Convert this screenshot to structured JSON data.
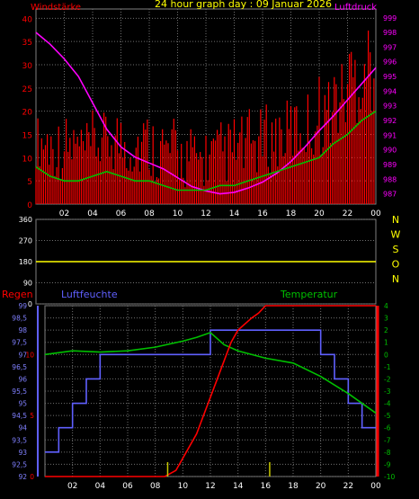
{
  "top": {
    "title": "24 hour graph day : 09 Januar 2026",
    "left_label": "Windstärke",
    "right_label": "Luftdruck",
    "colors": {
      "title": "#ffff00",
      "left": "#ff0000",
      "right": "#ff00ff",
      "wind": "#ff0000",
      "gust": "#00c000",
      "pressure": "#ff00ff",
      "lights": "#c8f0c8"
    }
  },
  "middle": {
    "dir_labels": [
      "N",
      "W",
      "S",
      "O",
      "N"
    ],
    "colors": {
      "direction": "#ffff00",
      "labels": "#ffff00"
    }
  },
  "bottom": {
    "rain_label": "Regen",
    "humidity_label": "Luftfeuchte",
    "temp_label": "Temperatur",
    "colors": {
      "rain": "#ff0000",
      "humidity": "#6060ff",
      "temperature": "#00c000",
      "rain_rate": "#c8c800"
    }
  },
  "chart_data": [
    {
      "type": "line",
      "x_ticks": [
        "02",
        "04",
        "06",
        "08",
        "10",
        "12",
        "14",
        "16",
        "18",
        "20",
        "22",
        "00"
      ],
      "y_ticks_left": [
        "0",
        "5",
        "10",
        "15",
        "20",
        "25",
        "30",
        "35",
        "40"
      ],
      "y_ticks_right": [
        "987",
        "988",
        "989",
        "990",
        "991",
        "992",
        "993",
        "994",
        "995",
        "996",
        "997",
        "998",
        "999"
      ],
      "ylim_left": [
        0,
        42
      ],
      "ylim_right": [
        986.3,
        999.6
      ],
      "series": [
        {
          "axis": "right",
          "x": [
            0,
            1,
            2,
            3,
            4,
            5,
            6,
            7,
            8,
            9,
            10,
            11,
            12,
            13,
            14,
            15,
            16,
            17,
            18,
            19,
            20,
            21,
            22,
            23,
            24
          ],
          "values": [
            998,
            997.2,
            996.2,
            995,
            993.2,
            991.4,
            990.2,
            989.5,
            989.1,
            988.7,
            988.1,
            987.5,
            987.2,
            987,
            987.1,
            987.4,
            987.8,
            988.4,
            989.2,
            990.2,
            991.3,
            992.3,
            993.4,
            994.5,
            995.6
          ]
        },
        {
          "axis": "left",
          "x": [
            0,
            1,
            2,
            3,
            4,
            5,
            6,
            7,
            8,
            9,
            10,
            11,
            12,
            13,
            14,
            15,
            16,
            17,
            18,
            19,
            20,
            21,
            22,
            23,
            24
          ],
          "values": [
            8,
            6,
            5,
            5,
            6,
            7,
            6,
            5,
            5,
            4,
            3,
            3,
            3,
            4,
            4,
            5,
            6,
            7,
            8,
            9,
            10,
            13,
            15,
            18,
            20
          ]
        },
        {
          "axis": "left",
          "x": [
            0,
            1,
            2,
            3,
            4,
            5,
            6,
            7,
            8,
            9,
            10,
            11,
            12,
            13,
            14,
            15,
            16,
            17,
            18,
            19,
            20,
            21,
            22,
            23,
            24
          ],
          "values": [
            15,
            14,
            14,
            13,
            15,
            16,
            15,
            15,
            14,
            13,
            12,
            11,
            12,
            13,
            14,
            15,
            16,
            17,
            18,
            19,
            22,
            25,
            30,
            33,
            28
          ]
        }
      ]
    },
    {
      "type": "line",
      "y_ticks": [
        "360",
        "270",
        "180",
        "90",
        "0"
      ],
      "ylim": [
        0,
        360
      ],
      "series": [
        {
          "x": [
            0,
            24
          ],
          "values": [
            180,
            180
          ]
        }
      ]
    },
    {
      "type": "line",
      "x_ticks": [
        "02",
        "04",
        "06",
        "08",
        "10",
        "12",
        "14",
        "16",
        "18",
        "20",
        "22",
        "00"
      ],
      "y_ticks_humidity": [
        "92",
        "92,5",
        "93",
        "93,5",
        "94",
        "94,5",
        "95",
        "95,5",
        "96",
        "96,5",
        "97",
        "97,5",
        "98",
        "98,5",
        "99"
      ],
      "y_ticks_rain": [
        "0",
        "5",
        "10"
      ],
      "y_ticks_temp": [
        "-10",
        "-9",
        "-8",
        "-7",
        "-6",
        "-5",
        "-4",
        "-3",
        "-2",
        "-1",
        "0",
        "1",
        "2",
        "3",
        "4"
      ],
      "ylim_humidity": [
        92,
        99
      ],
      "ylim_temp": [
        -10,
        4
      ],
      "ylim_rain": [
        0,
        14
      ],
      "series": [
        {
          "axis": "humidity",
          "x": [
            0,
            1,
            1,
            2,
            2,
            3,
            3,
            4,
            4,
            12,
            12,
            20,
            20,
            21,
            21,
            22,
            22,
            23,
            23,
            24
          ],
          "values": [
            93,
            93,
            94,
            94,
            95,
            95,
            96,
            96,
            97,
            97,
            98,
            98,
            97,
            97,
            96,
            96,
            95,
            95,
            94,
            94
          ]
        },
        {
          "axis": "temp",
          "x": [
            0,
            2,
            4,
            6,
            8,
            10,
            11,
            12,
            13,
            14,
            16,
            18,
            20,
            22,
            24
          ],
          "values": [
            0,
            0.3,
            0.2,
            0.3,
            0.6,
            1.1,
            1.4,
            1.8,
            0.8,
            0.3,
            -0.3,
            -0.7,
            -1.8,
            -3.2,
            -4.8
          ]
        },
        {
          "axis": "rain",
          "x": [
            0,
            8.7,
            9.5,
            10,
            11,
            11.5,
            12,
            12.5,
            13,
            13.5,
            14,
            15,
            15.5,
            16,
            18,
            24
          ],
          "values": [
            0,
            0,
            0.5,
            1.5,
            3.5,
            5,
            6.5,
            8,
            9.5,
            11,
            12,
            13,
            13.4,
            14,
            14,
            14
          ]
        }
      ]
    }
  ]
}
